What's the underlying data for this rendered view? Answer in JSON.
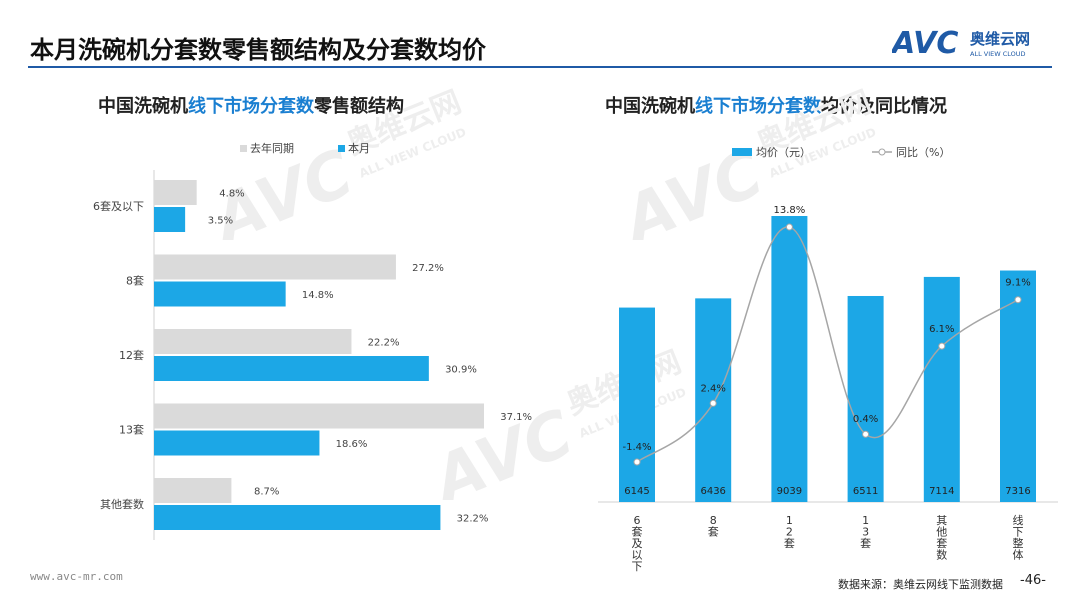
{
  "header": {
    "title": "本月洗碗机分套数零售额结构及分套数均价",
    "logo_mark": "AVC",
    "logo_cn": "奥维云网",
    "logo_en": "ALL VIEW CLOUD"
  },
  "left_chart_title": {
    "pre": "中国洗碗机",
    "highlight": "线下市场分套数",
    "post": "零售额结构"
  },
  "right_chart_title": {
    "pre": "中国洗碗机",
    "highlight": "线下市场分套数",
    "post": "均价及同比情况"
  },
  "footer": {
    "url": "www.avc-mr.com",
    "source": "数据来源：奥维云网线下监测数据",
    "page": "-46-"
  },
  "colors": {
    "blue": "#1ca7e6",
    "gray": "#dadada",
    "line": "#a6a6a6",
    "accent": "#1f5aa6"
  },
  "chart_data": [
    {
      "type": "bar",
      "orientation": "horizontal",
      "categories": [
        "6套及以下",
        "8套",
        "12套",
        "13套",
        "其他套数"
      ],
      "series": [
        {
          "name": "去年同期",
          "values": [
            4.8,
            27.2,
            22.2,
            37.1,
            8.7
          ],
          "labels": [
            "4.8%",
            "27.2%",
            "22.2%",
            "37.1%",
            "8.7%"
          ]
        },
        {
          "name": "本月",
          "values": [
            3.5,
            14.8,
            30.9,
            18.6,
            32.2
          ],
          "labels": [
            "3.5%",
            "14.8%",
            "30.9%",
            "18.6%",
            "32.2%"
          ]
        }
      ],
      "xlim": [
        0,
        40
      ],
      "legend": "top"
    },
    {
      "type": "bar+line",
      "categories": [
        "6套及以下",
        "8套",
        "12套",
        "13套",
        "其他套数",
        "线下整体"
      ],
      "bars": {
        "name": "均价（元）",
        "values": [
          6145,
          6436,
          9039,
          6511,
          7114,
          7316
        ],
        "labels": [
          "6145",
          "6436",
          "9039",
          "6511",
          "7114",
          "7316"
        ]
      },
      "line": {
        "name": "同比（%）",
        "values": [
          -1.4,
          2.4,
          13.8,
          0.4,
          6.1,
          9.1
        ],
        "labels": [
          "-1.4%",
          "2.4%",
          "13.8%",
          "0.4%",
          "6.1%",
          "9.1%"
        ]
      },
      "bar_ylim": [
        0,
        10000
      ],
      "line_ylim": [
        -4,
        16
      ],
      "legend": "top"
    }
  ]
}
